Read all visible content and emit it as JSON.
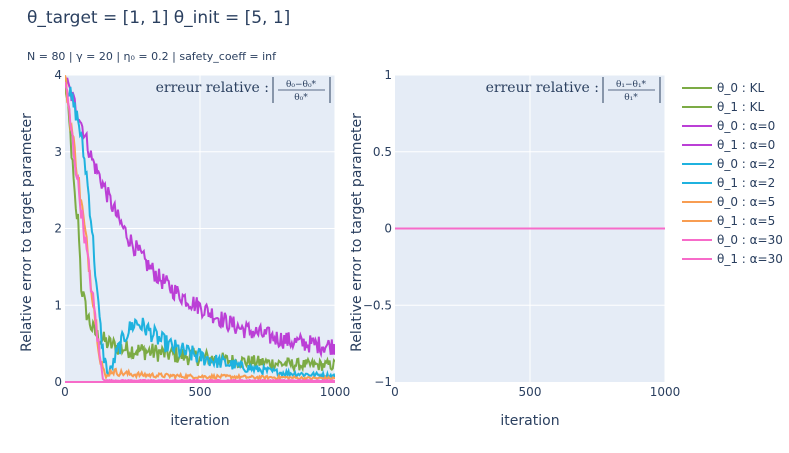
{
  "header": {
    "title": "θ_target = [1, 1]     θ_init = [5, 1]",
    "subtitle": "N = 80  |  γ = 20  | η₀ = 0.2  | safety_coeff = inf"
  },
  "chart_data": [
    {
      "type": "line",
      "panel": "left",
      "xlabel": "iteration",
      "ylabel": "Relative error to target parameter",
      "annotation": {
        "prefix": "erreur relative :",
        "num": "θ₀−θ₀*",
        "den": "θ₀*"
      },
      "xlim": [
        0,
        1000
      ],
      "ylim": [
        0,
        4
      ],
      "xticks": [
        0,
        500,
        1000
      ],
      "yticks": [
        0,
        1,
        2,
        3,
        4
      ],
      "grid": true,
      "series": [
        {
          "name": "θ_0 : KL",
          "color": "#7cab45",
          "noisy": true,
          "x": [
            0,
            20,
            40,
            50,
            60,
            80,
            100,
            120,
            140,
            160,
            200,
            250,
            300,
            350,
            400,
            450,
            500,
            550,
            600,
            700,
            800,
            900,
            1000
          ],
          "values": [
            3.95,
            3.2,
            2.2,
            2.1,
            1.25,
            0.9,
            0.7,
            0.6,
            0.55,
            0.5,
            0.45,
            0.42,
            0.4,
            0.38,
            0.36,
            0.34,
            0.32,
            0.3,
            0.28,
            0.26,
            0.24,
            0.22,
            0.22
          ]
        },
        {
          "name": "θ_1 : KL",
          "color": "#7cab45",
          "x": [
            0,
            1000
          ],
          "values": [
            0,
            0
          ]
        },
        {
          "name": "θ_0 : α=0",
          "color": "#bb3fd6",
          "noisy": true,
          "x": [
            0,
            50,
            100,
            150,
            200,
            250,
            300,
            350,
            400,
            450,
            500,
            550,
            600,
            650,
            700,
            750,
            800,
            850,
            900,
            950,
            1000
          ],
          "values": [
            3.95,
            3.5,
            2.9,
            2.5,
            2.1,
            1.8,
            1.55,
            1.35,
            1.2,
            1.08,
            0.98,
            0.88,
            0.78,
            0.7,
            0.65,
            0.6,
            0.56,
            0.52,
            0.5,
            0.48,
            0.47
          ]
        },
        {
          "name": "θ_1 : α=0",
          "color": "#bb3fd6",
          "x": [
            0,
            1000
          ],
          "values": [
            0,
            0
          ]
        },
        {
          "name": "θ_0 : α=2",
          "color": "#1fb2df",
          "noisy": true,
          "x": [
            0,
            50,
            80,
            100,
            120,
            140,
            160,
            180,
            200,
            230,
            260,
            280,
            300,
            350,
            400,
            450,
            500,
            550,
            600,
            650,
            700,
            800,
            900,
            1000
          ],
          "values": [
            3.95,
            3.4,
            2.7,
            2.0,
            1.1,
            0.4,
            0.1,
            0.25,
            0.45,
            0.65,
            0.78,
            0.75,
            0.7,
            0.55,
            0.45,
            0.38,
            0.33,
            0.28,
            0.24,
            0.2,
            0.17,
            0.12,
            0.1,
            0.08
          ]
        },
        {
          "name": "θ_1 : α=2",
          "color": "#1fb2df",
          "x": [
            0,
            1000
          ],
          "values": [
            0,
            0
          ]
        },
        {
          "name": "θ_0 : α=5",
          "color": "#f89d52",
          "noisy": true,
          "x": [
            0,
            40,
            80,
            110,
            130,
            150,
            170,
            200,
            250,
            300,
            400,
            500,
            600,
            700,
            800,
            900,
            1000
          ],
          "values": [
            3.95,
            2.9,
            1.8,
            0.9,
            0.35,
            0.05,
            0.15,
            0.12,
            0.1,
            0.09,
            0.08,
            0.07,
            0.07,
            0.06,
            0.06,
            0.05,
            0.05
          ]
        },
        {
          "name": "θ_1 : α=5",
          "color": "#f89d52",
          "x": [
            0,
            1000
          ],
          "values": [
            0,
            0
          ]
        },
        {
          "name": "θ_0 : α=30",
          "color": "#f76bc9",
          "noisy": true,
          "x": [
            0,
            40,
            80,
            110,
            130,
            140,
            150,
            200,
            300,
            400,
            500,
            600,
            700,
            800,
            900,
            1000
          ],
          "values": [
            3.95,
            2.8,
            1.7,
            0.9,
            0.3,
            0.05,
            0.02,
            0.02,
            0.02,
            0.02,
            0.02,
            0.02,
            0.02,
            0.02,
            0.02,
            0.02
          ]
        },
        {
          "name": "θ_1 : α=30",
          "color": "#f76bc9",
          "x": [
            0,
            1000
          ],
          "values": [
            0,
            0
          ]
        }
      ]
    },
    {
      "type": "line",
      "panel": "right",
      "xlabel": "iteration",
      "ylabel": "Relative error to target parameter",
      "annotation": {
        "prefix": "erreur relative :",
        "num": "θ₁−θ₁*",
        "den": "θ₁*"
      },
      "xlim": [
        0,
        1000
      ],
      "ylim": [
        -1,
        1
      ],
      "xticks": [
        0,
        500,
        1000
      ],
      "yticks": [
        -1,
        -0.5,
        0,
        0.5,
        1
      ],
      "yticklabels": [
        "−1",
        "−0.5",
        "0",
        "0.5",
        "1"
      ],
      "grid": true,
      "series": [
        {
          "name": "θ_1 : α=30",
          "color": "#f76bc9",
          "x": [
            0,
            1000
          ],
          "values": [
            0,
            0
          ]
        }
      ]
    }
  ],
  "legend": {
    "placement": "right",
    "items": [
      {
        "label": "θ_0 : KL",
        "color": "#7cab45"
      },
      {
        "label": "θ_1 : KL",
        "color": "#7cab45"
      },
      {
        "label": "θ_0 : α=0",
        "color": "#bb3fd6"
      },
      {
        "label": "θ_1 : α=0",
        "color": "#bb3fd6"
      },
      {
        "label": "θ_0 : α=2",
        "color": "#1fb2df"
      },
      {
        "label": "θ_1 : α=2",
        "color": "#1fb2df"
      },
      {
        "label": "θ_0 : α=5",
        "color": "#f89d52"
      },
      {
        "label": "θ_1 : α=5",
        "color": "#f89d52"
      },
      {
        "label": "θ_0 : α=30",
        "color": "#f76bc9"
      },
      {
        "label": "θ_1 : α=30",
        "color": "#f76bc9"
      }
    ]
  },
  "colors": {
    "plot_bg": "#e5ecf6",
    "grid": "#ffffff",
    "text": "#2a3f5f"
  }
}
